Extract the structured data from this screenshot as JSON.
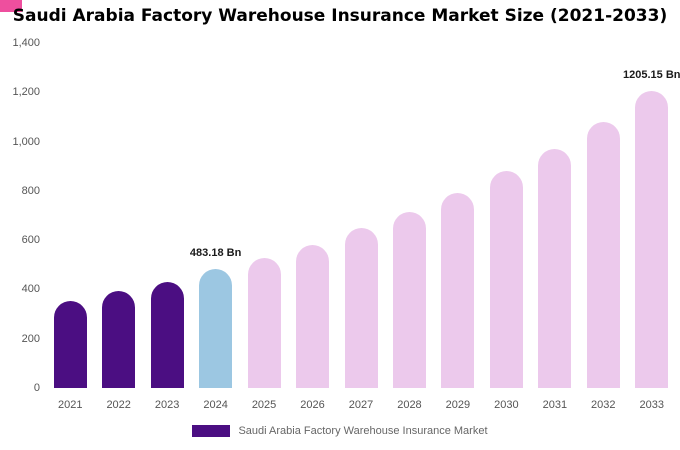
{
  "corner_accent_color": "#ee4f9e",
  "title": "Saudi Arabia Factory Warehouse Insurance Market Size (2021-2033)",
  "legend": {
    "label": "Saudi Arabia Factory Warehouse Insurance Market",
    "swatch_color": "#4b0e82"
  },
  "chart_data": {
    "type": "bar",
    "title": "Saudi Arabia Factory Warehouse Insurance Market Size (2021-2033)",
    "categories": [
      "2021",
      "2022",
      "2023",
      "2024",
      "2025",
      "2026",
      "2027",
      "2028",
      "2029",
      "2030",
      "2031",
      "2032",
      "2033"
    ],
    "values": [
      355,
      392,
      430,
      483.18,
      527,
      580,
      648,
      715,
      792,
      880,
      970,
      1080,
      1205.15
    ],
    "bar_colors": [
      "#4b0e82",
      "#4b0e82",
      "#4b0e82",
      "#9cc7e2",
      "#ecc9ec",
      "#ecc9ec",
      "#ecc9ec",
      "#ecc9ec",
      "#ecc9ec",
      "#ecc9ec",
      "#ecc9ec",
      "#ecc9ec",
      "#ecc9ec"
    ],
    "unit": "Bn",
    "annotations": [
      {
        "category": "2024",
        "label": "483.18 Bn"
      },
      {
        "category": "2033",
        "label": "1205.15 Bn"
      }
    ],
    "ylim": [
      0,
      1400
    ],
    "ytick_values": [
      0,
      200,
      400,
      600,
      800,
      1000,
      1200,
      1400
    ],
    "ytick_labels": [
      "0",
      "200",
      "400",
      "600",
      "800",
      "1,000",
      "1,200",
      "1,400"
    ],
    "xlabel": "",
    "ylabel": "",
    "grid": false,
    "legend_position": "bottom"
  }
}
